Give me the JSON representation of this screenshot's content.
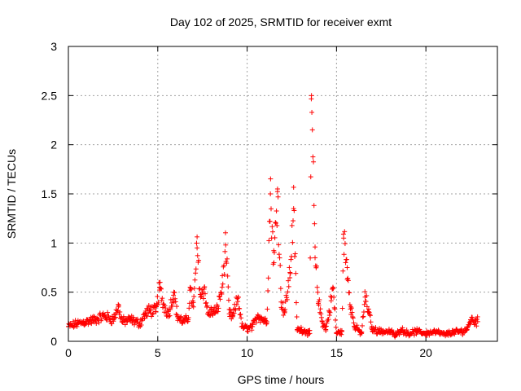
{
  "chart_data": {
    "type": "scatter",
    "title": "Day 102 of 2025, SRMTID for receiver exmt",
    "xlabel": "GPS time / hours",
    "ylabel": "SRMTID / TECUs",
    "xlim": [
      0,
      24
    ],
    "ylim": [
      0,
      3
    ],
    "x_ticks": [
      0,
      5,
      10,
      15,
      20
    ],
    "x_tick_labels": [
      "0",
      "5",
      "10",
      "15",
      "20"
    ],
    "y_ticks": [
      0,
      0.5,
      1,
      1.5,
      2,
      2.5,
      3
    ],
    "y_tick_labels": [
      "0",
      "0.5",
      "1",
      "1.5",
      "2",
      "2.5",
      "3"
    ],
    "grid": true,
    "marker": "+",
    "marker_color": "#ff0000",
    "series": [
      {
        "name": "SRMTID",
        "profile": [
          [
            0.0,
            0.15
          ],
          [
            0.5,
            0.18
          ],
          [
            1.0,
            0.2
          ],
          [
            1.5,
            0.22
          ],
          [
            2.0,
            0.26
          ],
          [
            2.5,
            0.22
          ],
          [
            2.8,
            0.35
          ],
          [
            3.0,
            0.2
          ],
          [
            3.5,
            0.22
          ],
          [
            4.0,
            0.18
          ],
          [
            4.3,
            0.28
          ],
          [
            4.6,
            0.32
          ],
          [
            4.9,
            0.3
          ],
          [
            5.1,
            0.55
          ],
          [
            5.3,
            0.38
          ],
          [
            5.6,
            0.28
          ],
          [
            5.9,
            0.5
          ],
          [
            6.1,
            0.25
          ],
          [
            6.4,
            0.2
          ],
          [
            6.7,
            0.22
          ],
          [
            6.8,
            0.52
          ],
          [
            7.0,
            0.35
          ],
          [
            7.2,
            0.95
          ],
          [
            7.4,
            0.45
          ],
          [
            7.6,
            0.55
          ],
          [
            7.8,
            0.28
          ],
          [
            8.0,
            0.3
          ],
          [
            8.3,
            0.3
          ],
          [
            8.6,
            0.55
          ],
          [
            8.8,
            0.98
          ],
          [
            9.0,
            0.28
          ],
          [
            9.2,
            0.25
          ],
          [
            9.5,
            0.45
          ],
          [
            9.7,
            0.15
          ],
          [
            10.0,
            0.13
          ],
          [
            10.3,
            0.15
          ],
          [
            10.6,
            0.27
          ],
          [
            10.9,
            0.22
          ],
          [
            11.1,
            0.2
          ],
          [
            11.3,
            1.5
          ],
          [
            11.5,
            0.8
          ],
          [
            11.7,
            1.55
          ],
          [
            11.9,
            0.4
          ],
          [
            12.1,
            0.3
          ],
          [
            12.4,
            0.7
          ],
          [
            12.6,
            1.35
          ],
          [
            12.8,
            0.12
          ],
          [
            13.0,
            0.12
          ],
          [
            13.3,
            0.1
          ],
          [
            13.5,
            0.08
          ],
          [
            13.6,
            2.5
          ],
          [
            13.8,
            0.85
          ],
          [
            14.0,
            0.4
          ],
          [
            14.2,
            0.2
          ],
          [
            14.4,
            0.12
          ],
          [
            14.6,
            0.3
          ],
          [
            14.8,
            0.55
          ],
          [
            15.0,
            0.08
          ],
          [
            15.3,
            0.1
          ],
          [
            15.4,
            1.05
          ],
          [
            15.6,
            0.75
          ],
          [
            15.8,
            0.35
          ],
          [
            16.0,
            0.15
          ],
          [
            16.4,
            0.08
          ],
          [
            16.6,
            0.45
          ],
          [
            16.8,
            0.3
          ],
          [
            17.0,
            0.12
          ],
          [
            17.5,
            0.1
          ],
          [
            18.0,
            0.1
          ],
          [
            18.3,
            0.06
          ],
          [
            18.6,
            0.12
          ],
          [
            19.0,
            0.08
          ],
          [
            19.5,
            0.1
          ],
          [
            20.0,
            0.08
          ],
          [
            20.5,
            0.1
          ],
          [
            21.0,
            0.07
          ],
          [
            21.5,
            0.09
          ],
          [
            22.0,
            0.1
          ],
          [
            22.3,
            0.12
          ],
          [
            22.5,
            0.22
          ],
          [
            22.9,
            0.2
          ]
        ]
      }
    ]
  }
}
